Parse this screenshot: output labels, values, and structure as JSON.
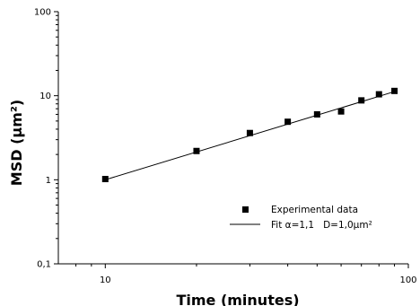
{
  "chart_data": {
    "type": "scatter",
    "title": "",
    "xlabel": "Time (minutes)",
    "ylabel": "MSD (µm²)",
    "xscale": "log",
    "yscale": "log",
    "xlim": [
      7,
      100
    ],
    "ylim": [
      0.1,
      100
    ],
    "x_ticks": [
      10,
      100
    ],
    "x_tick_labels": [
      "10",
      "100"
    ],
    "y_ticks": [
      0.1,
      1,
      10,
      100
    ],
    "y_tick_labels": [
      "0,1",
      "1",
      "10",
      "100"
    ],
    "grid": false,
    "legend_position": "lower-right",
    "series": [
      {
        "name": "Experimental data",
        "kind": "markers",
        "marker": "square",
        "color": "#000000",
        "x": [
          10,
          20,
          30,
          40,
          50,
          60,
          70,
          80,
          90
        ],
        "y": [
          1.02,
          2.2,
          3.6,
          4.9,
          6.0,
          6.5,
          8.8,
          10.4,
          11.4
        ]
      },
      {
        "name": "Fit α=1,1   D=1,0µm²",
        "kind": "line",
        "color": "#000000",
        "x": [
          10,
          90
        ],
        "y": [
          1.0,
          11.2
        ]
      }
    ]
  }
}
